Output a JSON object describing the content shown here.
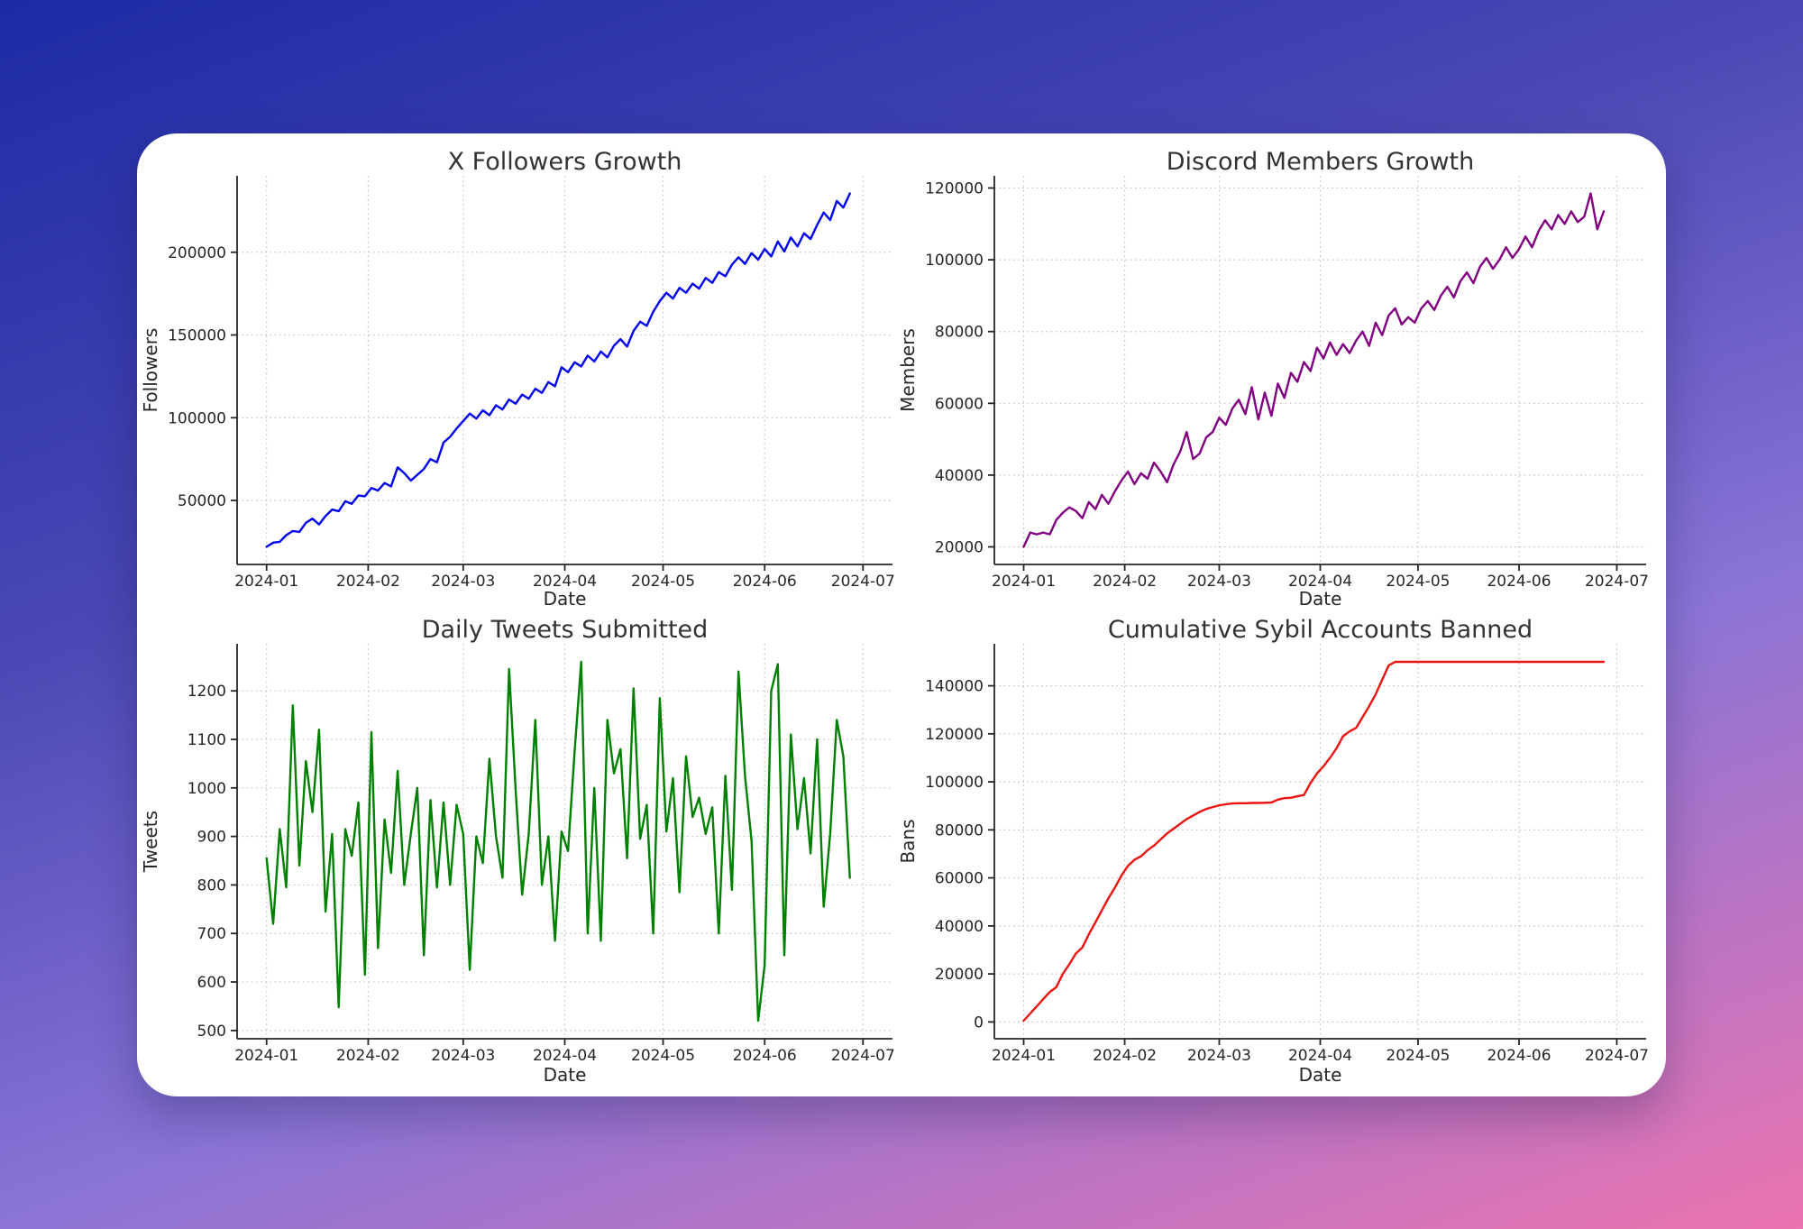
{
  "page": {
    "background_gradient": [
      "#1d2aa4",
      "#4a48b5",
      "#8b74d6",
      "#ec74b0"
    ],
    "card_color": "#ffffff",
    "text_color": "#262626"
  },
  "chart_data": [
    {
      "id": "x-followers-growth",
      "type": "line",
      "title": "X Followers Growth",
      "xlabel": "Date",
      "ylabel": "Followers",
      "color": "#0000ee",
      "grid": true,
      "legend": "none",
      "xlim_days": [
        -9,
        191
      ],
      "ylim": [
        11300,
        246200
      ],
      "xtick_days": [
        0,
        31,
        60,
        91,
        121,
        152,
        182
      ],
      "xtick_labels": [
        "2024-01",
        "2024-02",
        "2024-03",
        "2024-04",
        "2024-05",
        "2024-06",
        "2024-07"
      ],
      "yticks": [
        50000,
        100000,
        150000,
        200000
      ],
      "ytick_labels": [
        "50000",
        "100000",
        "150000",
        "200000"
      ],
      "x_start_day": 0,
      "x_step_days": 2,
      "values": [
        22000,
        24500,
        25000,
        29000,
        31500,
        31000,
        36500,
        39000,
        35500,
        40500,
        44500,
        43500,
        49500,
        48000,
        53000,
        52500,
        57500,
        56000,
        60500,
        58500,
        70000,
        66500,
        62000,
        65500,
        69000,
        75000,
        73000,
        85000,
        88500,
        93500,
        98000,
        102500,
        99500,
        104500,
        101500,
        107500,
        105000,
        111000,
        108500,
        114000,
        111500,
        117500,
        115000,
        121500,
        119000,
        130500,
        127500,
        133500,
        131000,
        137500,
        134000,
        140000,
        136500,
        143500,
        147500,
        143000,
        152500,
        158000,
        155500,
        164000,
        170500,
        175500,
        172000,
        178500,
        175500,
        181000,
        178000,
        184500,
        181500,
        188000,
        185500,
        192500,
        197000,
        193000,
        199500,
        195500,
        202000,
        197500,
        206500,
        200500,
        209000,
        203500,
        211500,
        208000,
        216500,
        224000,
        219500,
        231000,
        227000,
        235500
      ]
    },
    {
      "id": "discord-members-growth",
      "type": "line",
      "title": "Discord Members Growth",
      "xlabel": "Date",
      "ylabel": "Members",
      "color": "#800080",
      "grid": true,
      "legend": "none",
      "xlim_days": [
        -9,
        191
      ],
      "ylim": [
        15100,
        123400
      ],
      "xtick_days": [
        0,
        31,
        60,
        91,
        121,
        152,
        182
      ],
      "xtick_labels": [
        "2024-01",
        "2024-02",
        "2024-03",
        "2024-04",
        "2024-05",
        "2024-06",
        "2024-07"
      ],
      "yticks": [
        20000,
        40000,
        60000,
        80000,
        100000,
        120000
      ],
      "ytick_labels": [
        "20000",
        "40000",
        "60000",
        "80000",
        "100000",
        "120000"
      ],
      "x_start_day": 0,
      "x_step_days": 2,
      "values": [
        20000,
        24000,
        23500,
        24000,
        23500,
        27500,
        29500,
        31000,
        30000,
        28000,
        32500,
        30500,
        34500,
        32000,
        35500,
        38500,
        41000,
        37500,
        40500,
        39000,
        43500,
        41000,
        38000,
        43000,
        46500,
        52000,
        44500,
        46000,
        50500,
        52000,
        56000,
        54000,
        58500,
        61000,
        57000,
        64500,
        55500,
        63000,
        56500,
        65500,
        61500,
        68500,
        66000,
        71500,
        69000,
        75500,
        72500,
        77000,
        73500,
        76500,
        74000,
        77500,
        80000,
        76000,
        82500,
        79000,
        84500,
        86500,
        82000,
        84000,
        82500,
        86500,
        88500,
        86000,
        90000,
        92500,
        89500,
        94000,
        96500,
        93500,
        98000,
        100500,
        97500,
        100000,
        103500,
        100500,
        103000,
        106500,
        103500,
        108000,
        111000,
        108500,
        112500,
        110000,
        113500,
        110500,
        112000,
        118500,
        108500,
        113500
      ]
    },
    {
      "id": "daily-tweets-submitted",
      "type": "line",
      "title": "Daily Tweets Submitted",
      "xlabel": "Date",
      "ylabel": "Tweets",
      "color": "#008000",
      "grid": true,
      "legend": "none",
      "xlim_days": [
        -9,
        191
      ],
      "ylim": [
        483,
        1297
      ],
      "xtick_days": [
        0,
        31,
        60,
        91,
        121,
        152,
        182
      ],
      "xtick_labels": [
        "2024-01",
        "2024-02",
        "2024-03",
        "2024-04",
        "2024-05",
        "2024-06",
        "2024-07"
      ],
      "yticks": [
        500,
        600,
        700,
        800,
        900,
        1000,
        1100,
        1200
      ],
      "ytick_labels": [
        "500",
        "600",
        "700",
        "800",
        "900",
        "1000",
        "1100",
        "1200"
      ],
      "x_start_day": 0,
      "x_step_days": 2,
      "values": [
        855,
        720,
        915,
        795,
        1170,
        840,
        1055,
        950,
        1120,
        745,
        905,
        548,
        915,
        860,
        970,
        615,
        1115,
        670,
        935,
        825,
        1035,
        800,
        905,
        1000,
        655,
        975,
        795,
        970,
        800,
        965,
        905,
        625,
        900,
        845,
        1060,
        900,
        815,
        1245,
        995,
        780,
        905,
        1140,
        800,
        900,
        685,
        910,
        870,
        1075,
        1260,
        700,
        1000,
        685,
        1140,
        1030,
        1080,
        855,
        1205,
        895,
        965,
        700,
        1185,
        910,
        1020,
        785,
        1065,
        940,
        980,
        905,
        960,
        700,
        1025,
        790,
        1240,
        1025,
        890,
        520,
        635,
        1200,
        1255,
        655,
        1110,
        915,
        1020,
        865,
        1100,
        755,
        905,
        1140,
        1065,
        815
      ]
    },
    {
      "id": "cumulative-sybil-accounts-banned",
      "type": "line",
      "title": "Cumulative Sybil Accounts Banned",
      "xlabel": "Date",
      "ylabel": "Bans",
      "color": "#ee1111",
      "grid": true,
      "legend": "none",
      "xlim_days": [
        -9,
        191
      ],
      "ylim": [
        -7000,
        157500
      ],
      "xtick_days": [
        0,
        31,
        60,
        91,
        121,
        152,
        182
      ],
      "xtick_labels": [
        "2024-01",
        "2024-02",
        "2024-03",
        "2024-04",
        "2024-05",
        "2024-06",
        "2024-07"
      ],
      "yticks": [
        0,
        20000,
        40000,
        60000,
        80000,
        100000,
        120000,
        140000
      ],
      "ytick_labels": [
        "0",
        "20000",
        "40000",
        "60000",
        "80000",
        "100000",
        "120000",
        "140000"
      ],
      "x_start_day": 0,
      "x_step_days": 2,
      "values": [
        500,
        3500,
        6500,
        9500,
        12500,
        14500,
        20000,
        24000,
        28500,
        31000,
        36500,
        41500,
        46500,
        51500,
        56000,
        61000,
        65000,
        67500,
        69000,
        71500,
        73500,
        76000,
        78500,
        80500,
        82500,
        84500,
        86000,
        87500,
        88700,
        89500,
        90200,
        90700,
        91000,
        91100,
        91100,
        91200,
        91200,
        91300,
        91400,
        92600,
        93200,
        93400,
        94000,
        94500,
        99500,
        103500,
        106500,
        110000,
        114000,
        119000,
        121000,
        122500,
        127000,
        131500,
        136500,
        142500,
        148500,
        150000,
        150000,
        150000,
        150000,
        150000,
        150000,
        150000,
        150000,
        150000,
        150000,
        150000,
        150000,
        150000,
        150000,
        150000,
        150000,
        150000,
        150000,
        150000,
        150000,
        150000,
        150000,
        150000,
        150000,
        150000,
        150000,
        150000,
        150000,
        150000,
        150000,
        150000,
        150000,
        150000
      ]
    }
  ]
}
